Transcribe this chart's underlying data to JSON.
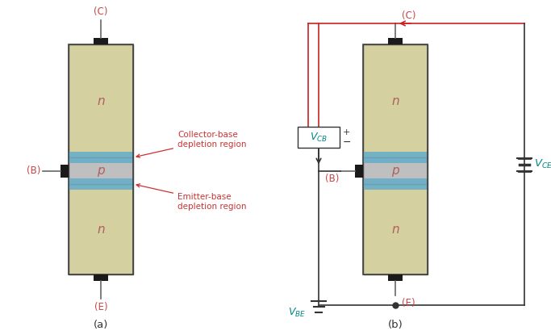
{
  "bg_color": "#ffffff",
  "transistor_fill": "#d4d0a0",
  "transistor_edge": "#444444",
  "p_region_fill": "#c0bfbf",
  "depletion_fill": "#6aaec8",
  "contact_fill": "#1a1a1a",
  "n_label_color": "#b06060",
  "p_label_color": "#b06060",
  "terminal_label_color": "#cc4444",
  "terminal_line_color": "#666666",
  "vcb_color": "#008888",
  "vce_color": "#008888",
  "vbe_color": "#008888",
  "circuit_red_color": "#cc2222",
  "circuit_black_color": "#333333",
  "annotation_color": "#cc3333",
  "fig_width": 6.83,
  "fig_height": 4.15,
  "dpi": 100,
  "label_a": "(a)",
  "label_b": "(b)",
  "n_label": "n",
  "p_label": "p",
  "C_label": "(C)",
  "B_label": "(B)",
  "E_label": "(E)",
  "cb_depletion_text": "Collector-base\ndepletion region",
  "eb_depletion_text": "Emitter-base\ndepletion region",
  "vcb_text": "$V_{CB}$",
  "vce_text": "$V_{CE}$",
  "vbe_text": "$V_{BE}$",
  "plus_text": "+",
  "minus_text": "−"
}
